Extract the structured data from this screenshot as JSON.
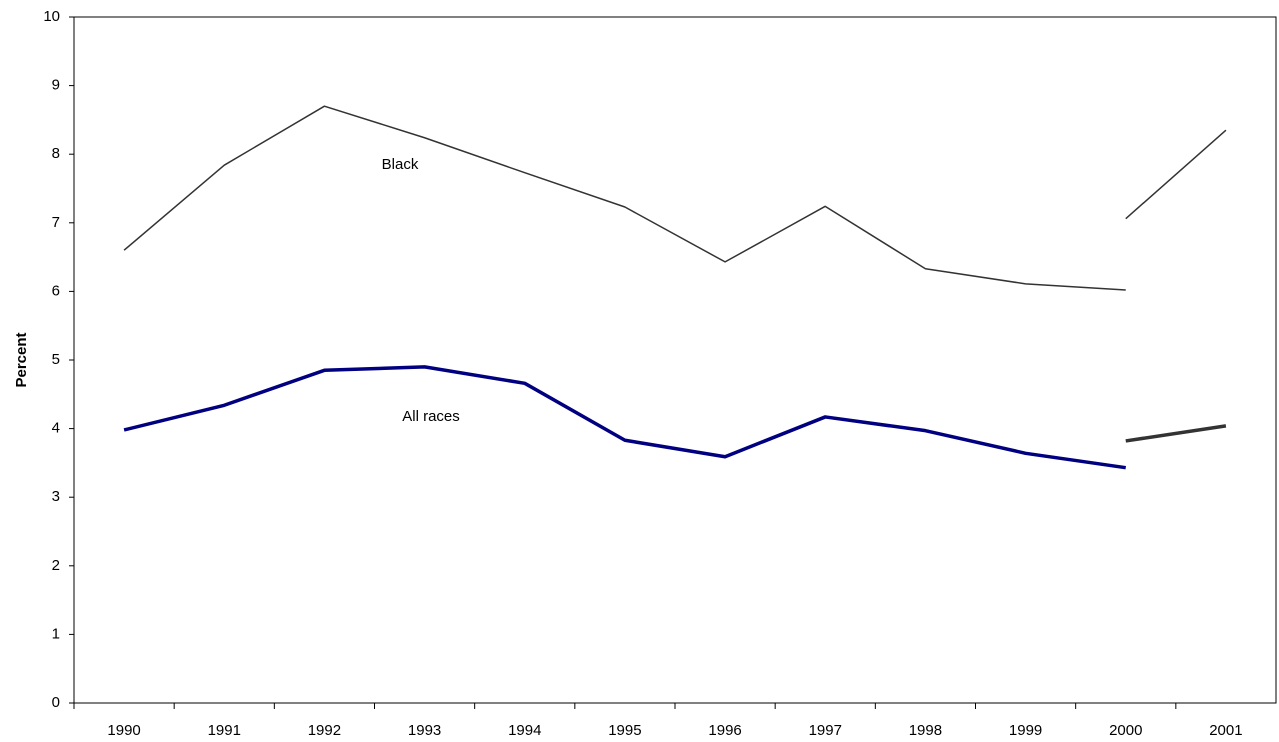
{
  "chart_data": {
    "type": "line",
    "y_label": "Percent",
    "categories": [
      "1990",
      "1991",
      "1992",
      "1993",
      "1994",
      "1995",
      "1996",
      "1997",
      "1998",
      "1999",
      "2000",
      "2001"
    ],
    "series": [
      {
        "name": "Black",
        "color": "#333333",
        "values": [
          6.6,
          7.84,
          8.7,
          8.24,
          7.73,
          7.23,
          6.43,
          7.24,
          6.33,
          6.11,
          6.02,
          null
        ]
      },
      {
        "color": "#333333",
        "values": [
          null,
          null,
          null,
          null,
          null,
          null,
          null,
          null,
          null,
          null,
          7.06,
          8.35
        ]
      },
      {
        "name": "All races",
        "color": "#000080",
        "values": [
          3.98,
          4.34,
          4.85,
          4.9,
          4.66,
          3.83,
          3.59,
          4.17,
          3.97,
          3.64,
          3.43,
          null
        ]
      },
      {
        "color": "#333333",
        "values": [
          null,
          null,
          null,
          null,
          null,
          null,
          null,
          null,
          null,
          null,
          3.82,
          4.04
        ]
      }
    ],
    "ylim": [
      0,
      10
    ],
    "yticks": [
      0,
      1,
      2,
      3,
      4,
      5,
      6,
      7,
      8,
      9,
      10
    ],
    "grid": false
  }
}
